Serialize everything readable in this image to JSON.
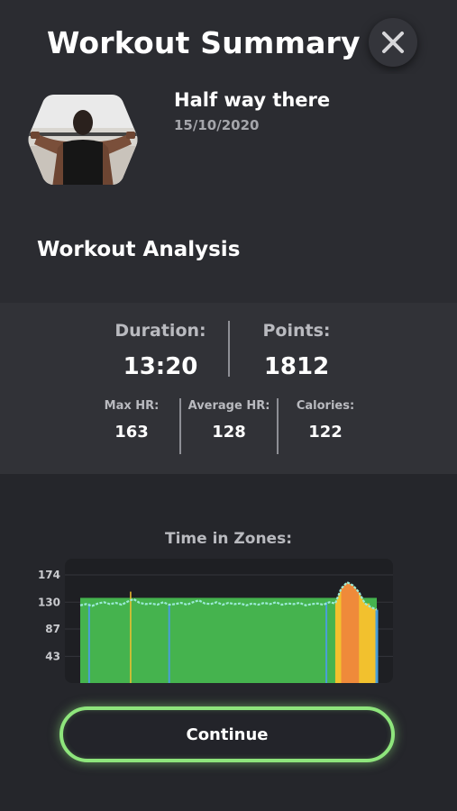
{
  "header": {
    "title": "Workout Summary",
    "close_icon": "close-icon"
  },
  "workout": {
    "name": "Half way there",
    "date": "15/10/2020"
  },
  "analysis": {
    "title": "Workout Analysis",
    "duration_label": "Duration:",
    "duration_value": "13:20",
    "points_label": "Points:",
    "points_value": "1812",
    "max_hr_label": "Max HR:",
    "max_hr_value": "163",
    "avg_hr_label": "Average HR:",
    "avg_hr_value": "128",
    "calories_label": "Calories:",
    "calories_value": "122"
  },
  "zones": {
    "title": "Time in Zones:"
  },
  "chart_data": {
    "type": "area",
    "title": "Time in Zones:",
    "xlabel": "",
    "ylabel": "",
    "yticks": [
      "174",
      "130",
      "87",
      "43"
    ],
    "ylim": [
      0,
      200
    ],
    "grid": true,
    "x": [
      0,
      2,
      4,
      6,
      8,
      10,
      12,
      14,
      16,
      18,
      20,
      22,
      24,
      26,
      28,
      30,
      32,
      34,
      36,
      38,
      40,
      42,
      44,
      46,
      48,
      50,
      52,
      54,
      56,
      58,
      60,
      62,
      64,
      66,
      68,
      70,
      72,
      74,
      76,
      78,
      80,
      82,
      84,
      86,
      88,
      90,
      92,
      94,
      96,
      98,
      100
    ],
    "series": [
      {
        "values": [
          125,
          127,
          124,
          128,
          130,
          127,
          129,
          126,
          131,
          135,
          129,
          127,
          128,
          126,
          130,
          126,
          127,
          129,
          126,
          130,
          133,
          128,
          127,
          130,
          126,
          129,
          127,
          128,
          125,
          128,
          126,
          129,
          127,
          130,
          126,
          128,
          127,
          129,
          125,
          127,
          128,
          126,
          130,
          128,
          152,
          162,
          157,
          146,
          128,
          122,
          118
        ]
      }
    ],
    "zone_colors": {
      "base": "#45b34e",
      "line": "#9bead6",
      "blue": "#4a9fd9",
      "yellow": "#f2c12e",
      "orange": "#ef8a3a"
    }
  },
  "continue_button": {
    "label": "Continue"
  }
}
